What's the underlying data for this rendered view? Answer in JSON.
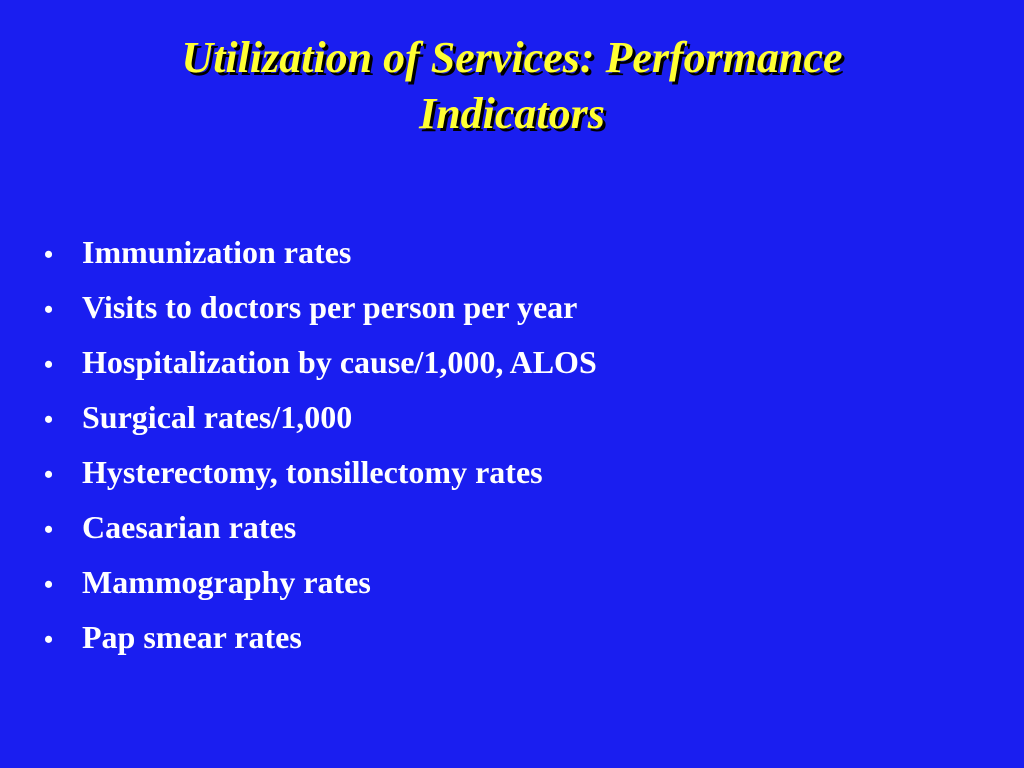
{
  "slide": {
    "title_line1": "Utilization of Services: Performance",
    "title_line2": "Indicators",
    "bullet_char": "•",
    "bullets": [
      "Immunization rates",
      "Visits to doctors per person per year",
      "Hospitalization by cause/1,000, ALOS",
      "Surgical rates/1,000",
      "Hysterectomy, tonsillectomy rates",
      "Caesarian rates",
      "Mammography rates",
      "Pap smear rates"
    ]
  },
  "colors": {
    "background": "#1a1ef0",
    "title": "#ffff33",
    "title_shadow": "#000000",
    "body_text": "#ffffff"
  }
}
